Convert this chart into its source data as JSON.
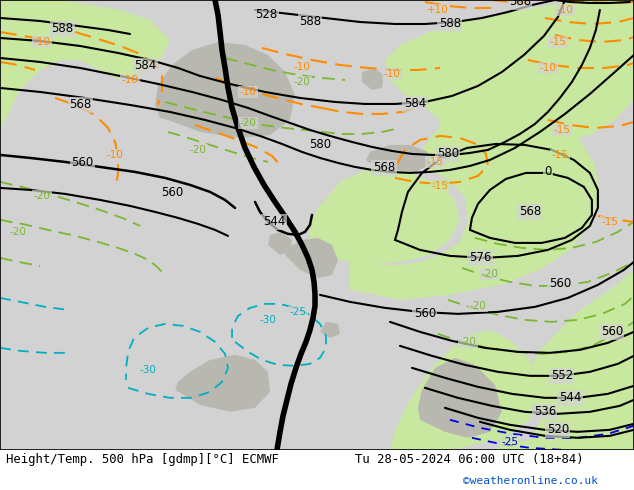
{
  "title_left": "Height/Temp. 500 hPa [gdmp][°C] ECMWF",
  "title_right": "Tu 28-05-2024 06:00 UTC (18+84)",
  "copyright": "©weatheronline.co.uk",
  "sea_color": "#d2d2d2",
  "green_land": "#c8e8a0",
  "gray_land": "#b8b8b0",
  "black_contour": "#000000",
  "orange_isotherm": "#ff8c00",
  "green_isotherm": "#7ab830",
  "cyan_isotherm": "#00b0c0",
  "blue_isotherm": "#0000e0"
}
